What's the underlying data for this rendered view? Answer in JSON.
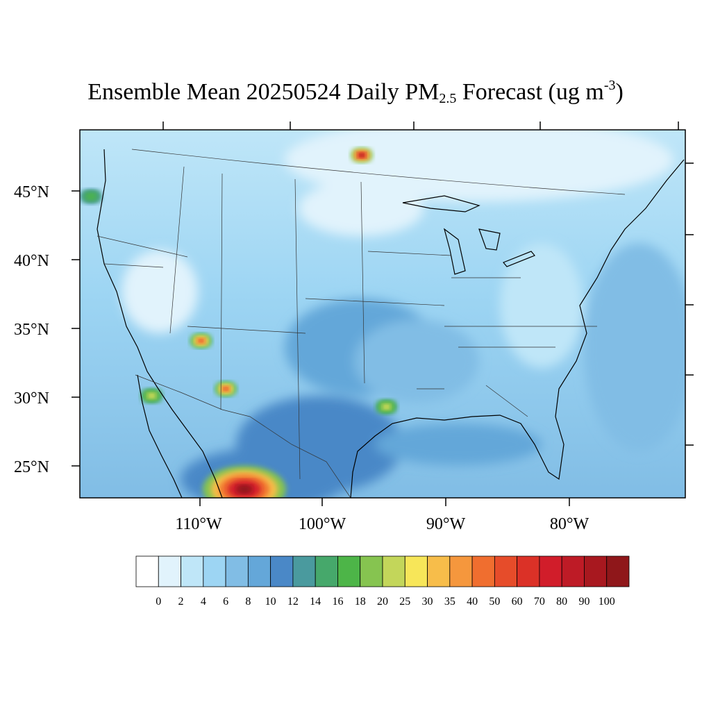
{
  "title": {
    "prefix": "Ensemble Mean 20250524 Daily PM",
    "subscript": "2.5",
    "middle": " Forecast (ug m",
    "superscript": "-3",
    "suffix": ")"
  },
  "lat_labels": [
    "45°N",
    "40°N",
    "35°N",
    "30°N",
    "25°N"
  ],
  "lon_labels": [
    "110°W",
    "100°W",
    "90°W",
    "80°W"
  ],
  "colorbar": {
    "labels": [
      "0",
      "2",
      "4",
      "6",
      "8",
      "10",
      "12",
      "14",
      "16",
      "18",
      "20",
      "25",
      "30",
      "35",
      "40",
      "50",
      "60",
      "70",
      "80",
      "90",
      "100"
    ],
    "colors": [
      "#ffffff",
      "#e1f3fc",
      "#bfe6f8",
      "#9dd5f3",
      "#81bde5",
      "#64a7d9",
      "#4a88c7",
      "#4a9a9e",
      "#46a86b",
      "#4db548",
      "#86c450",
      "#c3d65a",
      "#f7e659",
      "#f7bd4a",
      "#f5973d",
      "#f06e2f",
      "#e64c2a",
      "#db3127",
      "#d11d2a",
      "#be1b26",
      "#a8181f",
      "#8f171a"
    ]
  },
  "hotspots": [
    {
      "name": "north-dakota-plume",
      "lon": -96.8,
      "lat": 47.6,
      "level": 21
    },
    {
      "name": "arizona-plume",
      "lon": -109.8,
      "lat": 34.1,
      "level": 17
    },
    {
      "name": "chihuahua-plume",
      "lon": -107.8,
      "lat": 30.6,
      "level": 17
    },
    {
      "name": "east-texas-plume",
      "lon": -94.8,
      "lat": 29.3,
      "level": 12
    },
    {
      "name": "northern-mexico-plume",
      "lon": -106.3,
      "lat": 23.3,
      "level": 21
    },
    {
      "name": "oregon-spot",
      "lon": -118.7,
      "lat": 44.6,
      "level": 9
    },
    {
      "name": "baja-spot",
      "lon": -113.8,
      "lat": 30.1,
      "level": 12
    }
  ]
}
